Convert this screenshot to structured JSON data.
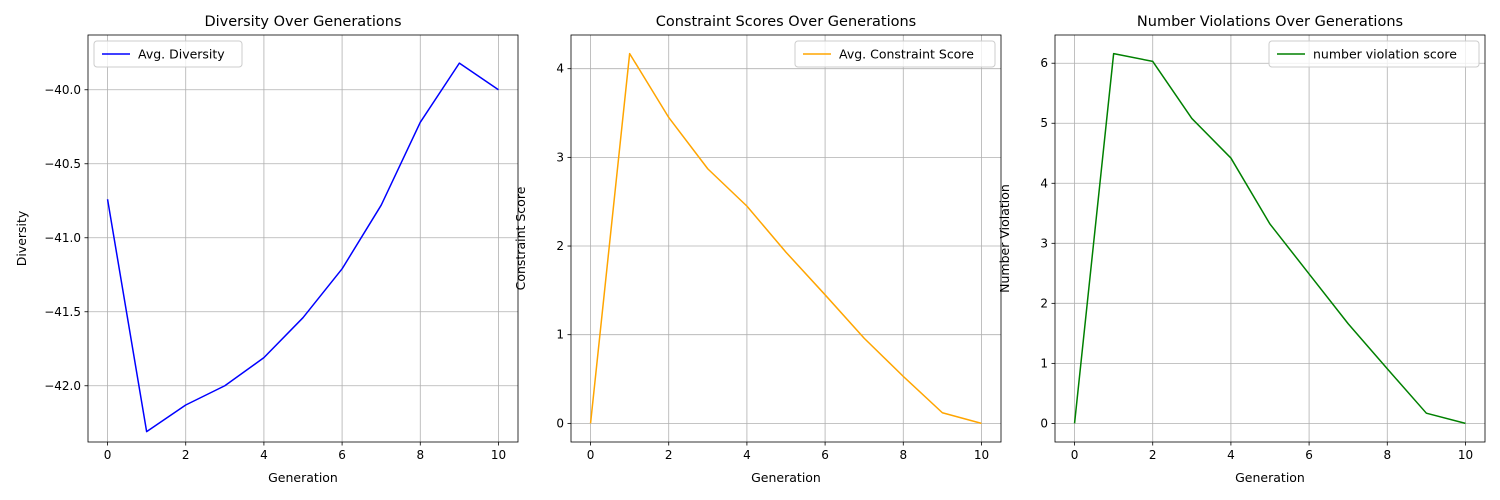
{
  "chart_data": [
    {
      "type": "line",
      "title": "Diversity Over Generations",
      "xlabel": "Generation",
      "ylabel": "Diversity",
      "xlim": [
        -0.5,
        10.5
      ],
      "ylim": [
        -42.38,
        -39.63
      ],
      "xticks": [
        0,
        2,
        4,
        6,
        8,
        10
      ],
      "xtick_labels": [
        "0",
        "2",
        "4",
        "6",
        "8",
        "10"
      ],
      "yticks": [
        -42.0,
        -41.5,
        -41.0,
        -40.5,
        -40.0
      ],
      "ytick_labels": [
        "−42.0",
        "−41.5",
        "−41.0",
        "−40.5",
        "−40.0"
      ],
      "grid": true,
      "legend_position": "upper-left",
      "series": [
        {
          "name": "Avg. Diversity",
          "color": "#0000ff",
          "x": [
            0,
            1,
            2,
            3,
            4,
            5,
            6,
            7,
            8,
            9,
            10
          ],
          "values": [
            -40.74,
            -42.31,
            -42.13,
            -42.0,
            -41.81,
            -41.54,
            -41.21,
            -40.78,
            -40.22,
            -39.82,
            -40.0
          ]
        }
      ]
    },
    {
      "type": "line",
      "title": "Constraint Scores Over Generations",
      "xlabel": "Generation",
      "ylabel": "Constraint Score",
      "xlim": [
        -0.5,
        10.5
      ],
      "ylim": [
        -0.21,
        4.38
      ],
      "xticks": [
        0,
        2,
        4,
        6,
        8,
        10
      ],
      "xtick_labels": [
        "0",
        "2",
        "4",
        "6",
        "8",
        "10"
      ],
      "yticks": [
        0,
        1,
        2,
        3,
        4
      ],
      "ytick_labels": [
        "0",
        "1",
        "2",
        "3",
        "4"
      ],
      "grid": true,
      "legend_position": "upper-right",
      "series": [
        {
          "name": "Avg. Constraint Score",
          "color": "#ffa500",
          "x": [
            0,
            1,
            2,
            3,
            4,
            5,
            6,
            7,
            8,
            9,
            10
          ],
          "values": [
            0.0,
            4.17,
            3.45,
            2.87,
            2.45,
            1.93,
            1.45,
            0.96,
            0.53,
            0.12,
            0.0
          ]
        }
      ]
    },
    {
      "type": "line",
      "title": "Number Violations Over Generations",
      "xlabel": "Generation",
      "ylabel": "Number Violation",
      "xlim": [
        -0.5,
        10.5
      ],
      "ylim": [
        -0.31,
        6.47
      ],
      "xticks": [
        0,
        2,
        4,
        6,
        8,
        10
      ],
      "xtick_labels": [
        "0",
        "2",
        "4",
        "6",
        "8",
        "10"
      ],
      "yticks": [
        0,
        1,
        2,
        3,
        4,
        5,
        6
      ],
      "ytick_labels": [
        "0",
        "1",
        "2",
        "3",
        "4",
        "5",
        "6"
      ],
      "grid": true,
      "legend_position": "upper-right",
      "series": [
        {
          "name": "number violation score",
          "color": "#008000",
          "x": [
            0,
            1,
            2,
            3,
            4,
            5,
            6,
            7,
            8,
            9,
            10
          ],
          "values": [
            0.0,
            6.16,
            6.03,
            5.08,
            4.42,
            3.32,
            2.49,
            1.66,
            0.91,
            0.17,
            0.0
          ]
        }
      ]
    }
  ]
}
